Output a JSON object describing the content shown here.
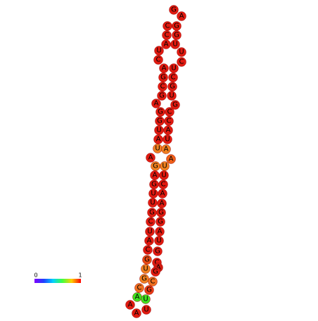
{
  "nodes": [
    {
      "label": "G",
      "color": "#e01a10"
    },
    {
      "label": "A",
      "color": "#e01a10"
    },
    {
      "label": "C",
      "color": "#e01a10"
    },
    {
      "label": "G",
      "color": "#e01a10"
    },
    {
      "label": "C",
      "color": "#e01a10"
    },
    {
      "label": "G",
      "color": "#e01a10"
    },
    {
      "label": "A",
      "color": "#e01a10"
    },
    {
      "label": "U",
      "color": "#e01a10"
    },
    {
      "label": "U",
      "color": "#e01a10"
    },
    {
      "label": "C",
      "color": "#e01a10"
    },
    {
      "label": "U",
      "color": "#e01a10"
    },
    {
      "label": "C",
      "color": "#e01a10"
    },
    {
      "label": "A",
      "color": "#e01a10"
    },
    {
      "label": "U",
      "color": "#e01a10"
    },
    {
      "label": "G",
      "color": "#e01a10"
    },
    {
      "label": "C",
      "color": "#e01a10"
    },
    {
      "label": "C",
      "color": "#e01a10"
    },
    {
      "label": "G",
      "color": "#e01a10"
    },
    {
      "label": "G",
      "color": "#e01a10"
    },
    {
      "label": "U",
      "color": "#e01a10"
    },
    {
      "label": "A",
      "color": "#e01a10"
    },
    {
      "label": "G",
      "color": "#e01a10"
    },
    {
      "label": "G",
      "color": "#e01a10"
    },
    {
      "label": "C",
      "color": "#e01a10"
    },
    {
      "label": "G",
      "color": "#e01a10"
    },
    {
      "label": "C",
      "color": "#e01a10"
    },
    {
      "label": "U",
      "color": "#e01a10"
    },
    {
      "label": "A",
      "color": "#e01a10"
    },
    {
      "label": "A",
      "color": "#e01a10"
    },
    {
      "label": "U",
      "color": "#e01a10"
    },
    {
      "label": "U",
      "color": "#f08020"
    },
    {
      "label": "A",
      "color": "#f08020"
    },
    {
      "label": "A",
      "color": "#e01a10"
    },
    {
      "label": "A",
      "color": "#f06018"
    },
    {
      "label": "G",
      "color": "#f08020"
    },
    {
      "label": "U",
      "color": "#f08020"
    },
    {
      "label": "A",
      "color": "#e01a10"
    },
    {
      "label": "U",
      "color": "#e01a10"
    },
    {
      "label": "G",
      "color": "#e01a10"
    },
    {
      "label": "C",
      "color": "#e01a10"
    },
    {
      "label": "U",
      "color": "#e01a10"
    },
    {
      "label": "A",
      "color": "#e01a10"
    },
    {
      "label": "U",
      "color": "#e01a10"
    },
    {
      "label": "A",
      "color": "#e01a10"
    },
    {
      "label": "G",
      "color": "#e01a10"
    },
    {
      "label": "G",
      "color": "#e01a10"
    },
    {
      "label": "C",
      "color": "#e01a10"
    },
    {
      "label": "G",
      "color": "#e01a10"
    },
    {
      "label": "U",
      "color": "#e01a10"
    },
    {
      "label": "A",
      "color": "#e01a10"
    },
    {
      "label": "A",
      "color": "#e01a10"
    },
    {
      "label": "U",
      "color": "#e01a10"
    },
    {
      "label": "C",
      "color": "#e01a10"
    },
    {
      "label": "G",
      "color": "#e01a10"
    },
    {
      "label": "G",
      "color": "#e84a14"
    },
    {
      "label": "C",
      "color": "#e01a10"
    },
    {
      "label": "A",
      "color": "#d01a10"
    },
    {
      "label": "G",
      "color": "#e01a10"
    },
    {
      "label": "U",
      "color": "#f08020"
    },
    {
      "label": "G",
      "color": "#f08020"
    },
    {
      "label": "C",
      "color": "#f07020"
    },
    {
      "label": "C",
      "color": "#f07020"
    },
    {
      "label": "G",
      "color": "#e83a14"
    },
    {
      "label": "A",
      "color": "#40e020"
    },
    {
      "label": "U",
      "color": "#40e020"
    },
    {
      "label": "A",
      "color": "#e01a10"
    },
    {
      "label": "A",
      "color": "#e01a10"
    },
    {
      "label": "U",
      "color": "#e01a10"
    }
  ],
  "colorbar": {
    "min_label": "0",
    "max_label": "1"
  }
}
